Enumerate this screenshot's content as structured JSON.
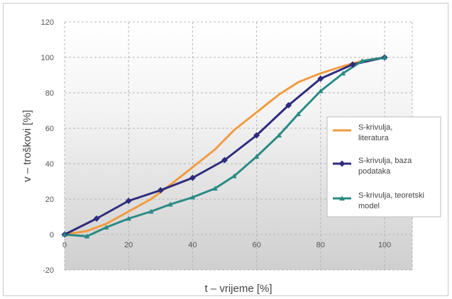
{
  "chart_data": {
    "type": "line",
    "title": "",
    "xlabel": "t – vrijeme [%]",
    "ylabel": "v – troškovi [%]",
    "xlim": [
      0,
      100
    ],
    "ylim": [
      -20,
      120
    ],
    "x_ticks": [
      "0",
      "20",
      "40",
      "60",
      "80",
      "100"
    ],
    "y_ticks": [
      "-20",
      "0",
      "20",
      "40",
      "60",
      "80",
      "100",
      "120"
    ],
    "grid": true,
    "legend_position": "right",
    "series": [
      {
        "name": "S-krivulja, literatura",
        "legend_lines": [
          "S-krivulja,",
          "literatura"
        ],
        "color": "#f39a3e",
        "marker": "none",
        "points": [
          [
            0,
            0
          ],
          [
            7,
            2
          ],
          [
            13,
            6
          ],
          [
            20,
            13
          ],
          [
            27,
            20
          ],
          [
            33,
            28
          ],
          [
            40,
            38
          ],
          [
            47,
            48
          ],
          [
            53,
            59
          ],
          [
            60,
            69
          ],
          [
            67,
            79
          ],
          [
            73,
            86
          ],
          [
            80,
            91
          ],
          [
            87,
            95
          ],
          [
            93,
            98
          ],
          [
            100,
            100
          ]
        ]
      },
      {
        "name": "S-krivulja, baza podataka",
        "legend_lines": [
          "S-krivulja, baza",
          "podataka"
        ],
        "color": "#2e2b7e",
        "marker": "diamond",
        "points": [
          [
            0,
            0
          ],
          [
            10,
            9
          ],
          [
            20,
            19
          ],
          [
            30,
            25
          ],
          [
            40,
            32
          ],
          [
            50,
            42
          ],
          [
            60,
            56
          ],
          [
            70,
            73
          ],
          [
            80,
            88
          ],
          [
            90,
            96
          ],
          [
            100,
            100
          ]
        ]
      },
      {
        "name": "S-krivulja, teoretski model",
        "legend_lines": [
          "S-krivulja, teoretski",
          "model"
        ],
        "color": "#2a8a84",
        "marker": "triangle",
        "points": [
          [
            0,
            0
          ],
          [
            7,
            -1
          ],
          [
            13,
            4
          ],
          [
            20,
            9
          ],
          [
            27,
            13
          ],
          [
            33,
            17
          ],
          [
            40,
            21
          ],
          [
            47,
            26
          ],
          [
            53,
            33
          ],
          [
            60,
            44
          ],
          [
            67,
            56
          ],
          [
            73,
            68
          ],
          [
            80,
            81
          ],
          [
            87,
            91
          ],
          [
            93,
            98
          ],
          [
            100,
            100
          ]
        ]
      }
    ]
  }
}
